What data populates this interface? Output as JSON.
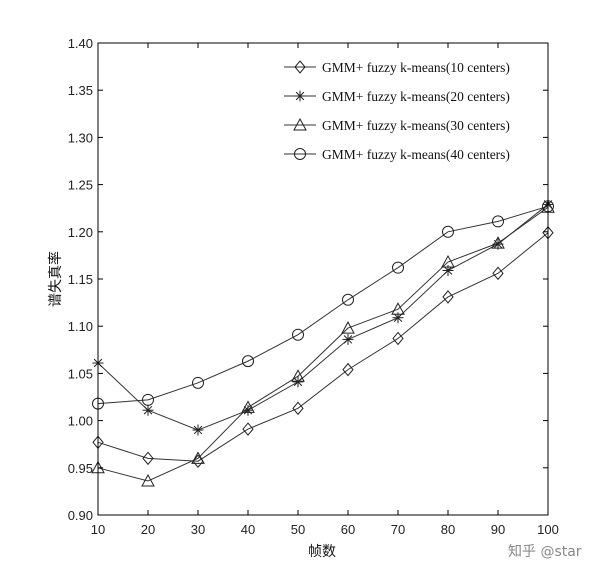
{
  "chart_data": {
    "type": "line",
    "title": "",
    "xlabel": "帧数",
    "ylabel": "谱失真率",
    "x": [
      10,
      20,
      30,
      40,
      50,
      60,
      70,
      80,
      90,
      100
    ],
    "xlim": [
      10,
      100
    ],
    "ylim": [
      0.9,
      1.4
    ],
    "xticks": [
      "10",
      "20",
      "30",
      "40",
      "50",
      "60",
      "70",
      "80",
      "90",
      "100"
    ],
    "yticks": [
      "0.90",
      "0.95",
      "1.00",
      "1.05",
      "1.10",
      "1.15",
      "1.20",
      "1.25",
      "1.30",
      "1.35",
      "1.40"
    ],
    "grid": false,
    "legend_position": "top-right",
    "series": [
      {
        "name": "GMM+ fuzzy k-means(10 centers)",
        "marker": "diamond",
        "values": [
          0.977,
          0.96,
          0.957,
          0.991,
          1.013,
          1.054,
          1.087,
          1.131,
          1.156,
          1.199
        ]
      },
      {
        "name": "GMM+ fuzzy k-means(20 centers)",
        "marker": "star",
        "values": [
          1.061,
          1.011,
          0.99,
          1.011,
          1.041,
          1.086,
          1.109,
          1.159,
          1.187,
          1.229
        ]
      },
      {
        "name": "GMM+ fuzzy k-means(30 centers)",
        "marker": "triangle",
        "values": [
          0.95,
          0.936,
          0.96,
          1.014,
          1.047,
          1.098,
          1.118,
          1.168,
          1.188,
          1.226
        ]
      },
      {
        "name": "GMM+ fuzzy k-means(40 centers)",
        "marker": "circle",
        "values": [
          1.018,
          1.022,
          1.04,
          1.063,
          1.091,
          1.128,
          1.162,
          1.2,
          1.211,
          1.227
        ]
      }
    ]
  },
  "watermark": "知乎 @star"
}
